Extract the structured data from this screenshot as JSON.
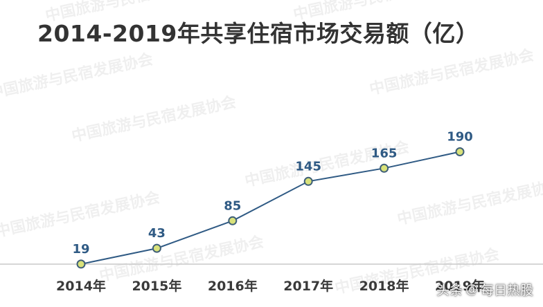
{
  "chart_data": {
    "type": "line",
    "title": "2014-2019年共享住宿市场交易额（亿）",
    "categories": [
      "2014年",
      "2015年",
      "2016年",
      "2017年",
      "2018年",
      "2019年"
    ],
    "values": [
      19,
      43,
      85,
      145,
      165,
      190
    ],
    "xlabel": "",
    "ylabel": "",
    "ylim": [
      0,
      210
    ],
    "grid": false,
    "legend": "none",
    "data_labels": true,
    "colors": {
      "line": "#2f5a84",
      "marker_fill": "#d9e27a",
      "marker_edge": "#3f5f78",
      "baseline": "#c8c8c8",
      "label": "#2f5a84"
    }
  },
  "watermark": {
    "text": "中国旅游与民宿发展协会"
  },
  "brand": {
    "prefix": "头条",
    "at": "@",
    "name": "每日热股"
  }
}
